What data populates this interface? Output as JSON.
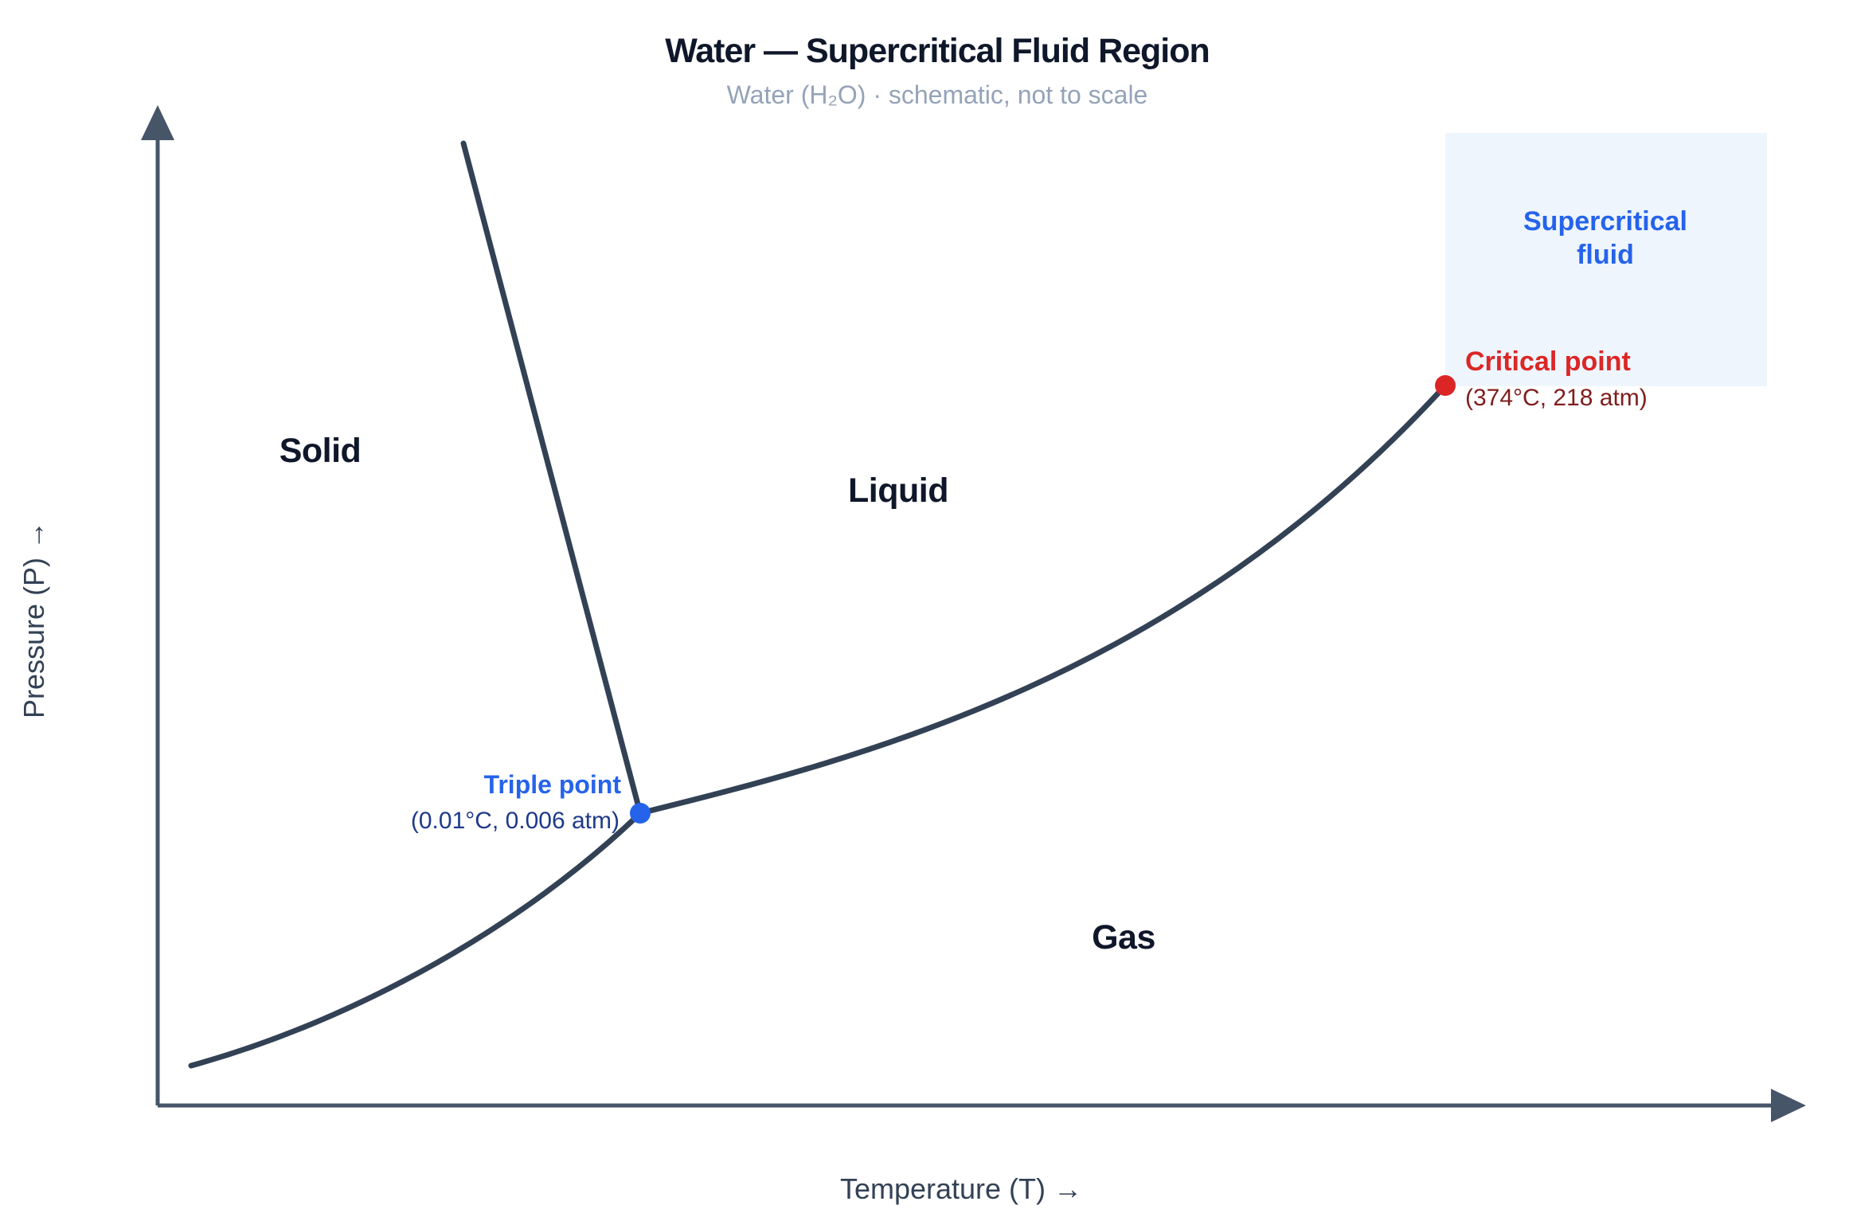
{
  "header": {
    "title": "Water — Supercritical Fluid Region",
    "subtitle": "Water (H₂O) · schematic, not to scale"
  },
  "axes": {
    "x_label": "Temperature (T) →",
    "y_label": "Pressure (P) →"
  },
  "regions": {
    "solid": "Solid",
    "liquid": "Liquid",
    "gas": "Gas",
    "supercritical_line1": "Supercritical",
    "supercritical_line2": "fluid"
  },
  "triple_point": {
    "label": "Triple point",
    "coords": "(0.01°C, 0.006 atm)"
  },
  "critical_point": {
    "label": "Critical point",
    "coords": "(374°C, 218 atm)"
  },
  "colors": {
    "curve": "#334155",
    "axis": "#475569",
    "triple_point": "#2563eb",
    "critical_point": "#dc2626",
    "supercritical_fill": "#eef5fd"
  }
}
